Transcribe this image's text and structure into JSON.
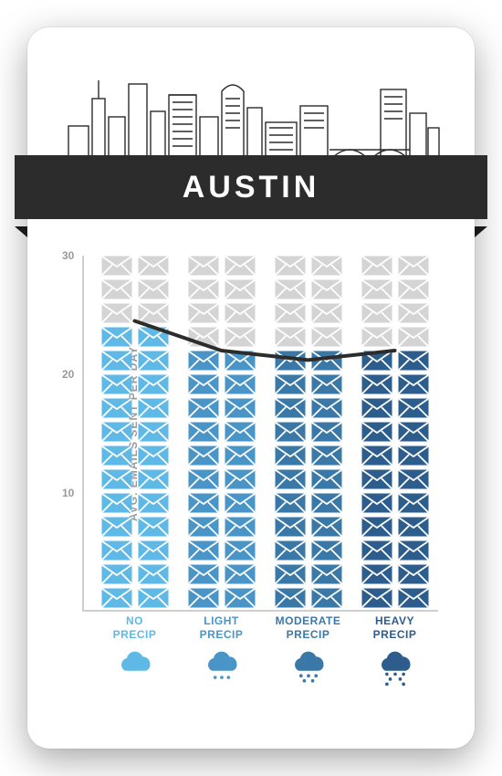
{
  "title": "AUSTIN",
  "title_fontsize": 34,
  "title_color": "#ffffff",
  "banner_bg": "#2c2c2c",
  "card_bg": "#ffffff",
  "ylabel": "AVG. EMAILS SENT PER DAY",
  "ylabel_color": "#9a9a9a",
  "axis_color": "#cfcfcf",
  "max_rows": 15,
  "ylim": [
    0,
    30
  ],
  "yticks": [
    10,
    20,
    30
  ],
  "inactive_color": "#d4d4d4",
  "line_color": "#2c2c2c",
  "line_width": 4,
  "categories": [
    {
      "label_a": "NO",
      "label_b": "PRECIP",
      "value": 24,
      "filled_rows": 12,
      "color": "#5fb9e6",
      "line_y": 24.5,
      "dots": 0
    },
    {
      "label_a": "LIGHT",
      "label_b": "PRECIP",
      "value": 22,
      "filled_rows": 11,
      "color": "#4a95c8",
      "line_y": 22.0,
      "dots": 3
    },
    {
      "label_a": "MODERATE",
      "label_b": "PRECIP",
      "value": 22,
      "filled_rows": 11,
      "color": "#3a78a8",
      "line_y": 21.2,
      "dots": 5
    },
    {
      "label_a": "HEAVY",
      "label_b": "PRECIP",
      "value": 22,
      "filled_rows": 11,
      "color": "#2c5d8c",
      "line_y": 22.0,
      "dots": 7
    }
  ]
}
